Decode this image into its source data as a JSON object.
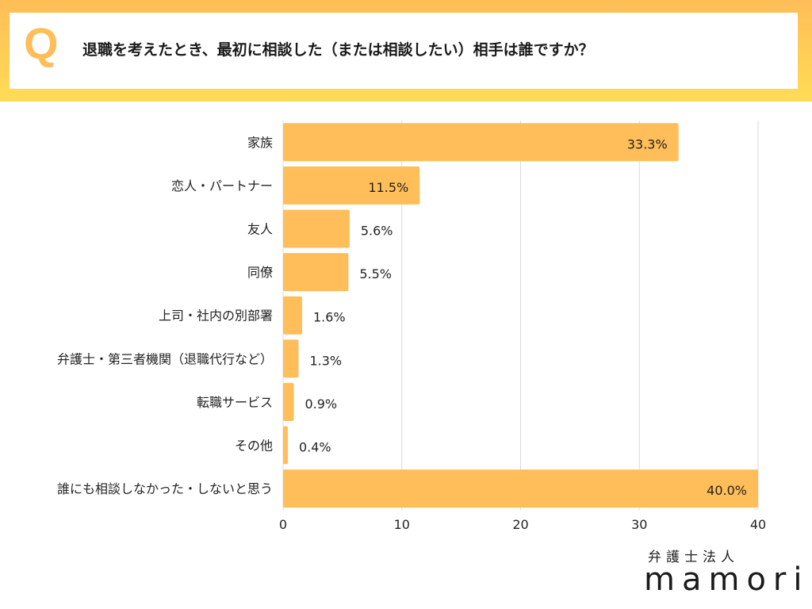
{
  "question": {
    "mark": "Q",
    "text": "退職を考えたとき、最初に相談した（または相談したい）相手は誰ですか？"
  },
  "chart_data": {
    "type": "bar",
    "orientation": "horizontal",
    "categories": [
      "家族",
      "恋人・パートナー",
      "友人",
      "同僚",
      "上司・社内の別部署",
      "弁護士・第三者機関（退職代行など）",
      "転職サービス",
      "その他",
      "誰にも相談しなかった・しないと思う"
    ],
    "values": [
      33.3,
      11.5,
      5.6,
      5.5,
      1.6,
      1.3,
      0.9,
      0.4,
      40.0
    ],
    "data_labels": [
      "33.3%",
      "11.5%",
      "5.6%",
      "5.5%",
      "1.6%",
      "1.3%",
      "0.9%",
      "0.4%",
      "40.0%"
    ],
    "xlim": [
      0,
      40
    ],
    "xticks": [
      "0",
      "10",
      "20",
      "30",
      "40"
    ],
    "grid": true,
    "bar_color": "#FFBE5A"
  },
  "logo": {
    "sub": "弁護士法人",
    "main": "mamori"
  },
  "colors": {
    "frame_top": "#FFBD58",
    "frame_bottom": "#FFDC55",
    "accent": "#FFBE5A"
  }
}
